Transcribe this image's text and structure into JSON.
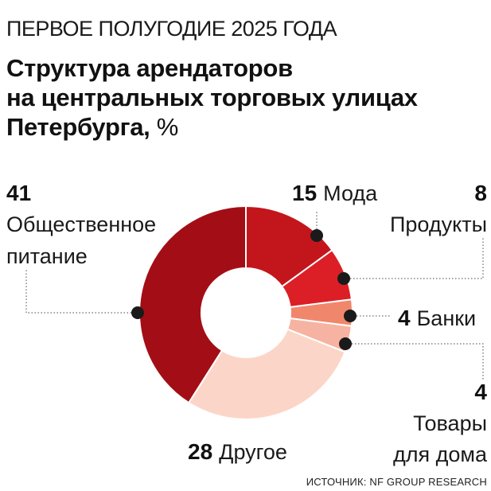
{
  "header": {
    "kicker": "ПЕРВОЕ ПОЛУГОДИЕ 2025 ГОДА",
    "title_lines": [
      "Структура арендаторов",
      "на центральных торговых улицах",
      "Петербурга"
    ],
    "title_unit": "%"
  },
  "source": "ИСТОЧНИК: NF GROUP RESEARCH",
  "chart_data": {
    "type": "pie",
    "subtype": "donut",
    "title": "Структура арендаторов на центральных торговых улицах Петербурга, %",
    "unit": "%",
    "slices": [
      {
        "label": "Мода",
        "label_lines": [
          "Мода"
        ],
        "value": 15,
        "color": "#c3161c"
      },
      {
        "label": "Продукты",
        "label_lines": [
          "Продукты"
        ],
        "value": 8,
        "color": "#dc1f26"
      },
      {
        "label": "Банки",
        "label_lines": [
          "Банки"
        ],
        "value": 4,
        "color": "#f0876c"
      },
      {
        "label": "Товары для дома",
        "label_lines": [
          "Товары",
          "для дома"
        ],
        "value": 4,
        "color": "#f7b3a1"
      },
      {
        "label": "Другое",
        "label_lines": [
          "Другое"
        ],
        "value": 28,
        "color": "#fbd6c8"
      },
      {
        "label": "Общественное питание",
        "label_lines": [
          "Общественное",
          "питание"
        ],
        "value": 41,
        "color": "#a30e16"
      }
    ]
  }
}
